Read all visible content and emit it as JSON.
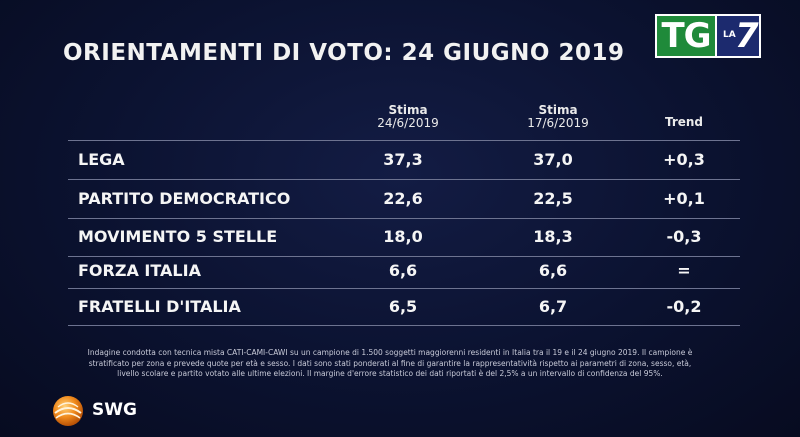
{
  "title": "ORIENTAMENTI DI VOTO: 24 GIUGNO 2019",
  "brand": {
    "tg": "TG",
    "la": "LA",
    "seven": "7",
    "tg_color": "#1f8a3a",
    "la7_color": "#1c2a6e"
  },
  "chart_data": {
    "type": "table",
    "columns": [
      {
        "label": "Stima",
        "sub": "24/6/2019"
      },
      {
        "label": "Stima",
        "sub": "17/6/2019"
      },
      {
        "label": "Trend",
        "sub": ""
      }
    ],
    "rows": [
      {
        "party": "LEGA",
        "stima_24": "37,3",
        "stima_17": "37,0",
        "trend": "+0,3"
      },
      {
        "party": "PARTITO DEMOCRATICO",
        "stima_24": "22,6",
        "stima_17": "22,5",
        "trend": "+0,1"
      },
      {
        "party": "MOVIMENTO 5 STELLE",
        "stima_24": "18,0",
        "stima_17": "18,3",
        "trend": "-0,3"
      },
      {
        "party": "FORZA ITALIA",
        "stima_24": "6,6",
        "stima_17": "6,6",
        "trend": "="
      },
      {
        "party": "FRATELLI D'ITALIA",
        "stima_24": "6,5",
        "stima_17": "6,7",
        "trend": "-0,2"
      }
    ]
  },
  "note": "Indagine condotta con tecnica mista CATI-CAMI-CAWI su un campione di 1.500 soggetti maggiorenni residenti in Italia tra il 19 e il 24 giugno 2019. Il campione è stratificato per zona e prevede quote per età e sesso. I dati sono stati ponderati al fine di garantire la rappresentatività rispetto ai parametri di zona, sesso, età, livello scolare e partito votato alle ultime elezioni. Il margine d'errore statistico dei dati riportati è del 2,5% a un intervallo di confidenza del 95%.",
  "source": "SWG"
}
